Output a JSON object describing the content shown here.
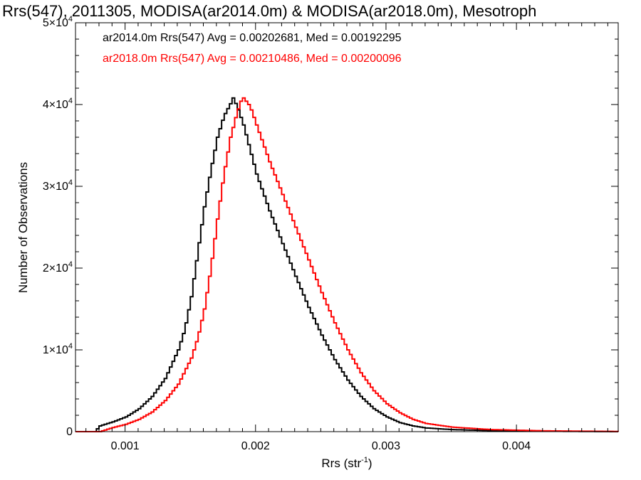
{
  "chart_data": {
    "type": "line",
    "title": "Rrs(547), 2011305, MODISA(ar2014.0m) & MODISA(ar2018.0m), Mesotroph",
    "xlabel": "Rrs (str",
    "xlabel_superscript": "-1",
    "xlabel_suffix": ")",
    "ylabel": "Number of Observations",
    "xlim": [
      0.00062,
      0.00478
    ],
    "ylim": [
      0,
      50000
    ],
    "x_ticks": [
      {
        "value": 0.001,
        "label": "0.001"
      },
      {
        "value": 0.002,
        "label": "0.002"
      },
      {
        "value": 0.003,
        "label": "0.003"
      },
      {
        "value": 0.004,
        "label": "0.004"
      }
    ],
    "y_ticks": [
      {
        "value": 0,
        "label": "0",
        "exp": ""
      },
      {
        "value": 10000,
        "label": "1×10",
        "exp": "4"
      },
      {
        "value": 20000,
        "label": "2×10",
        "exp": "4"
      },
      {
        "value": 30000,
        "label": "3×10",
        "exp": "4"
      },
      {
        "value": 40000,
        "label": "4×10",
        "exp": "4"
      },
      {
        "value": 50000,
        "label": "5×10",
        "exp": "4"
      }
    ],
    "grid": false,
    "legend_position": "top-left",
    "series": [
      {
        "name": "ar2014.0m Rrs(547) Avg = 0.00202681, Med = 0.00192295",
        "color": "#000000",
        "step": true,
        "points": [
          [
            0.00062,
            0
          ],
          [
            0.00076,
            0
          ],
          [
            0.0008,
            700
          ],
          [
            0.0009,
            1200
          ],
          [
            0.001,
            1800
          ],
          [
            0.0011,
            2800
          ],
          [
            0.0012,
            4300
          ],
          [
            0.0013,
            6500
          ],
          [
            0.0014,
            10000
          ],
          [
            0.00145,
            12500
          ],
          [
            0.0015,
            16500
          ],
          [
            0.00155,
            22000
          ],
          [
            0.0016,
            27500
          ],
          [
            0.00165,
            32000
          ],
          [
            0.0017,
            36000
          ],
          [
            0.00175,
            38600
          ],
          [
            0.0018,
            40100
          ],
          [
            0.00182,
            40800
          ],
          [
            0.00185,
            39800
          ],
          [
            0.0019,
            37500
          ],
          [
            0.00195,
            34500
          ],
          [
            0.002,
            31500
          ],
          [
            0.0021,
            27000
          ],
          [
            0.0022,
            23000
          ],
          [
            0.0023,
            19000
          ],
          [
            0.0024,
            15200
          ],
          [
            0.0025,
            11800
          ],
          [
            0.0026,
            8800
          ],
          [
            0.0027,
            6300
          ],
          [
            0.0028,
            4300
          ],
          [
            0.0029,
            2800
          ],
          [
            0.003,
            1800
          ],
          [
            0.0031,
            1100
          ],
          [
            0.0032,
            700
          ],
          [
            0.0033,
            450
          ],
          [
            0.0035,
            250
          ],
          [
            0.0038,
            120
          ],
          [
            0.0042,
            50
          ],
          [
            0.00478,
            0
          ]
        ]
      },
      {
        "name": "ar2018.0m Rrs(547) Avg = 0.00210486, Med = 0.00200096",
        "color": "#ff0000",
        "step": true,
        "points": [
          [
            0.00062,
            0
          ],
          [
            0.0008,
            0
          ],
          [
            0.0009,
            500
          ],
          [
            0.001,
            900
          ],
          [
            0.0011,
            1500
          ],
          [
            0.0012,
            2400
          ],
          [
            0.0013,
            3800
          ],
          [
            0.0014,
            5800
          ],
          [
            0.0015,
            9000
          ],
          [
            0.00155,
            11500
          ],
          [
            0.0016,
            15000
          ],
          [
            0.00165,
            20000
          ],
          [
            0.0017,
            26000
          ],
          [
            0.00175,
            31500
          ],
          [
            0.0018,
            36000
          ],
          [
            0.00185,
            39000
          ],
          [
            0.00188,
            40400
          ],
          [
            0.0019,
            40800
          ],
          [
            0.00195,
            39800
          ],
          [
            0.002,
            37500
          ],
          [
            0.0021,
            33000
          ],
          [
            0.0022,
            29000
          ],
          [
            0.0023,
            25000
          ],
          [
            0.0024,
            21000
          ],
          [
            0.0025,
            17000
          ],
          [
            0.0026,
            13300
          ],
          [
            0.0027,
            10000
          ],
          [
            0.0028,
            7200
          ],
          [
            0.0029,
            5000
          ],
          [
            0.003,
            3400
          ],
          [
            0.0031,
            2300
          ],
          [
            0.0032,
            1500
          ],
          [
            0.0033,
            1000
          ],
          [
            0.0035,
            550
          ],
          [
            0.0038,
            250
          ],
          [
            0.0042,
            100
          ],
          [
            0.00478,
            20
          ]
        ]
      }
    ]
  }
}
